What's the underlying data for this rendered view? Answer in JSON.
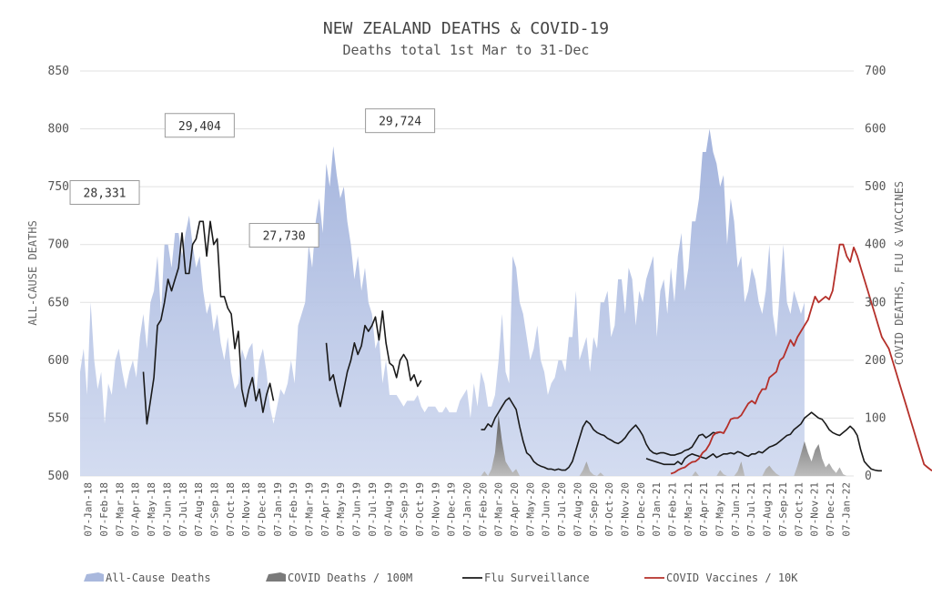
{
  "chart_data": {
    "type": "area",
    "title": "NEW ZEALAND DEATHS & COVID-19",
    "subtitle": "Deaths total 1st Mar to 31-Dec",
    "ylabel": "ALL-CAUSE DEATHS",
    "y2label": "COVID DEATHS, FLU & VACCINES",
    "ylim": [
      500,
      850
    ],
    "y_ticks": [
      "500",
      "550",
      "600",
      "650",
      "700",
      "750",
      "800",
      "850"
    ],
    "y2lim": [
      0,
      700
    ],
    "y2_ticks": [
      "0",
      "100",
      "200",
      "300",
      "400",
      "500",
      "600",
      "700"
    ],
    "x_ticks": [
      "07-Jan-18",
      "07-Feb-18",
      "07-Mar-18",
      "07-Apr-18",
      "07-May-18",
      "07-Jun-18",
      "07-Jul-18",
      "07-Aug-18",
      "07-Sep-18",
      "07-Oct-18",
      "07-Nov-18",
      "07-Dec-18",
      "07-Jan-19",
      "07-Feb-19",
      "07-Mar-19",
      "07-Apr-19",
      "07-May-19",
      "07-Jun-19",
      "07-Jul-19",
      "07-Aug-19",
      "07-Sep-19",
      "07-Oct-19",
      "07-Nov-19",
      "07-Dec-19",
      "07-Jan-20",
      "07-Feb-20",
      "07-Mar-20",
      "07-Apr-20",
      "07-May-20",
      "07-Jun-20",
      "07-Jul-20",
      "07-Aug-20",
      "07-Sep-20",
      "07-Oct-20",
      "07-Nov-20",
      "07-Dec-20",
      "07-Jan-21",
      "07-Feb-21",
      "07-Mar-21",
      "07-Apr-21",
      "07-May-21",
      "07-Jun-21",
      "07-Jul-21",
      "07-Aug-21",
      "07-Sep-21",
      "07-Oct-21",
      "07-Nov-21",
      "07-Dec-21",
      "07-Jan-22"
    ],
    "annotations": [
      {
        "text": "28,331",
        "x": 7,
        "y": 745
      },
      {
        "text": "29,404",
        "x": 34,
        "y": 803
      },
      {
        "text": "27,730",
        "x": 58,
        "y": 708
      },
      {
        "text": "29,724",
        "x": 91,
        "y": 807
      }
    ],
    "legend": [
      "All-Cause Deaths",
      "COVID Deaths / 100M",
      "Flu Surveillance",
      "COVID Vaccines / 10K"
    ],
    "legend_position": "bottom",
    "series": [
      {
        "name": "All-Cause Deaths",
        "axis": "left",
        "color": "#a9b8dd",
        "weekly_start": 0,
        "values": [
          590,
          610,
          570,
          650,
          600,
          575,
          590,
          545,
          580,
          570,
          600,
          610,
          590,
          575,
          590,
          600,
          585,
          620,
          640,
          610,
          650,
          660,
          690,
          640,
          700,
          700,
          680,
          710,
          710,
          690,
          710,
          725,
          700,
          680,
          690,
          660,
          640,
          650,
          625,
          640,
          615,
          600,
          620,
          590,
          575,
          580,
          610,
          600,
          610,
          615,
          570,
          600,
          610,
          590,
          560,
          545,
          560,
          575,
          570,
          580,
          600,
          580,
          630,
          640,
          650,
          700,
          680,
          720,
          740,
          710,
          770,
          750,
          785,
          760,
          740,
          750,
          720,
          700,
          670,
          690,
          660,
          680,
          650,
          640,
          610,
          620,
          580,
          600,
          570,
          570,
          570,
          565,
          560,
          565,
          565,
          565,
          570,
          560,
          555,
          560,
          560,
          560,
          555,
          555,
          560,
          555,
          555,
          555,
          565,
          570,
          575,
          550,
          580,
          560,
          590,
          580,
          560,
          560,
          570,
          600,
          640,
          590,
          580,
          690,
          680,
          650,
          640,
          620,
          600,
          610,
          630,
          600,
          590,
          570,
          580,
          585,
          600,
          600,
          590,
          620,
          620,
          660,
          600,
          610,
          620,
          590,
          620,
          610,
          650,
          650,
          660,
          620,
          630,
          670,
          670,
          640,
          680,
          670,
          630,
          660,
          650,
          670,
          680,
          690,
          620,
          660,
          670,
          640,
          680,
          650,
          690,
          710,
          660,
          680,
          720,
          720,
          740,
          780,
          780,
          800,
          780,
          770,
          750,
          760,
          700,
          740,
          720,
          680,
          690,
          650,
          660,
          680,
          670,
          650,
          640,
          660,
          700,
          640,
          620,
          660,
          700,
          650,
          640,
          660,
          650,
          640,
          650
        ]
      },
      {
        "name": "COVID Deaths / 100M",
        "axis": "right",
        "color": "#7a7a7a",
        "points": [
          [
            114,
            0
          ],
          [
            115,
            8
          ],
          [
            116,
            0
          ],
          [
            117,
            12
          ],
          [
            118,
            40
          ],
          [
            119,
            105
          ],
          [
            120,
            60
          ],
          [
            121,
            25
          ],
          [
            122,
            15
          ],
          [
            123,
            6
          ],
          [
            124,
            12
          ],
          [
            125,
            0
          ],
          [
            142,
            0
          ],
          [
            143,
            10
          ],
          [
            144,
            25
          ],
          [
            145,
            8
          ],
          [
            146,
            2
          ],
          [
            147,
            0
          ],
          [
            148,
            6
          ],
          [
            149,
            0
          ],
          [
            174,
            0
          ],
          [
            175,
            8
          ],
          [
            176,
            0
          ],
          [
            181,
            0
          ],
          [
            182,
            10
          ],
          [
            183,
            3
          ],
          [
            184,
            0
          ],
          [
            186,
            0
          ],
          [
            187,
            8
          ],
          [
            188,
            25
          ],
          [
            189,
            0
          ],
          [
            194,
            0
          ],
          [
            195,
            12
          ],
          [
            196,
            18
          ],
          [
            197,
            10
          ],
          [
            198,
            4
          ],
          [
            199,
            0
          ],
          [
            203,
            0
          ],
          [
            204,
            18
          ],
          [
            205,
            38
          ],
          [
            206,
            60
          ],
          [
            207,
            40
          ],
          [
            208,
            25
          ],
          [
            209,
            45
          ],
          [
            210,
            55
          ],
          [
            211,
            30
          ],
          [
            212,
            15
          ],
          [
            213,
            22
          ],
          [
            214,
            12
          ],
          [
            215,
            5
          ],
          [
            216,
            15
          ],
          [
            217,
            3
          ],
          [
            218,
            0
          ]
        ]
      },
      {
        "name": "Flu Surveillance",
        "axis": "right",
        "color": "#1a1a1a",
        "segments": [
          {
            "start": 18,
            "values": [
              180,
              90,
              130,
              170,
              260,
              270,
              300,
              340,
              320,
              340,
              360,
              420,
              350,
              350,
              400,
              410,
              440,
              440,
              380,
              440,
              400,
              410,
              310,
              310,
              290,
              280,
              220,
              250,
              150,
              120,
              150,
              170,
              130,
              150,
              110,
              140,
              160,
              130
            ]
          },
          {
            "start": 70,
            "values": [
              230,
              165,
              175,
              145,
              120,
              150,
              180,
              200,
              230,
              210,
              225,
              260,
              250,
              260,
              275,
              235,
              285,
              230,
              195,
              190,
              170,
              200,
              210,
              200,
              165,
              175,
              155,
              165
            ]
          },
          {
            "start": 114,
            "values": [
              80,
              80,
              90,
              85,
              100,
              110,
              120,
              130,
              135,
              125,
              115,
              85,
              60,
              40,
              35,
              25,
              20,
              17,
              15,
              12,
              12,
              10,
              12,
              10,
              10,
              15,
              25,
              45,
              65,
              85,
              95,
              90,
              80,
              75,
              72,
              70,
              65,
              62,
              58,
              56,
              60,
              66,
              75,
              82,
              88,
              80,
              70,
              55,
              45,
              40,
              38,
              40,
              40,
              38,
              36,
              36,
              38,
              40,
              44,
              46,
              50,
              60,
              70,
              72,
              66,
              70,
              75,
              74,
              76
            ]
          },
          {
            "start": 161,
            "values": [
              30,
              28,
              26,
              24,
              22,
              20,
              20,
              20,
              20,
              25,
              20,
              30,
              35,
              38,
              36,
              34,
              32,
              30,
              34,
              38,
              32,
              35,
              38,
              38,
              40,
              38,
              42,
              40,
              36,
              34,
              38,
              38,
              42,
              40,
              45,
              50,
              52,
              55,
              60,
              65,
              70,
              72,
              80,
              85,
              90,
              100,
              105,
              110,
              105,
              100,
              98,
              90,
              80,
              75,
              72,
              70,
              75,
              80,
              86,
              80,
              70,
              45,
              25,
              18,
              12,
              10,
              9,
              9
            ]
          }
        ]
      },
      {
        "name": "COVID Vaccines / 10K",
        "axis": "right",
        "color": "#b5302a",
        "start": 168,
        "values": [
          4,
          6,
          10,
          13,
          15,
          20,
          24,
          25,
          30,
          40,
          45,
          55,
          70,
          75,
          76,
          74,
          85,
          98,
          100,
          100,
          105,
          115,
          125,
          130,
          125,
          140,
          150,
          150,
          170,
          175,
          180,
          200,
          205,
          220,
          235,
          225,
          240,
          250,
          260,
          270,
          290,
          310,
          300,
          305,
          310,
          305,
          320,
          360,
          400,
          400,
          380,
          370,
          395,
          380,
          360,
          340,
          320,
          300,
          280,
          260,
          240,
          230,
          220,
          200,
          180,
          160,
          140,
          120,
          100,
          80,
          60,
          40,
          20,
          15,
          10,
          8,
          5,
          5,
          3,
          2
        ]
      }
    ]
  }
}
